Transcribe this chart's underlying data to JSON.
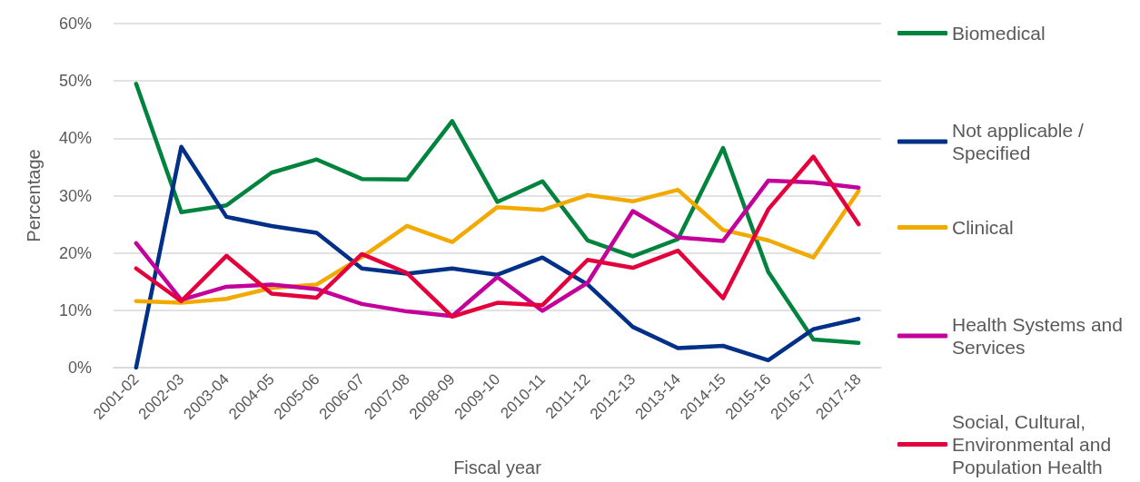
{
  "chart_data": {
    "type": "line",
    "xlabel": "Fiscal year",
    "ylabel": "Percentage",
    "categories": [
      "2001-02",
      "2002-03",
      "2003-04",
      "2004-05",
      "2005-06",
      "2006-07",
      "2007-08",
      "2008-09",
      "2009-10",
      "2010-11",
      "2011-12",
      "2012-13",
      "2013-14",
      "2014-15",
      "2015-16",
      "2016-17",
      "2017-18"
    ],
    "series": [
      {
        "name": "Biomedical",
        "color": "#00843d",
        "values": [
          49.5,
          27.1,
          28.3,
          34.0,
          36.3,
          32.9,
          32.8,
          43.0,
          28.9,
          32.5,
          22.2,
          19.4,
          22.4,
          38.3,
          16.7,
          4.9,
          4.3
        ]
      },
      {
        "name": "Not applicable / Specified",
        "color": "#003087",
        "values": [
          0,
          38.5,
          26.3,
          24.7,
          23.5,
          17.3,
          16.4,
          17.3,
          16.2,
          19.2,
          14.5,
          7.1,
          3.4,
          3.8,
          1.3,
          6.7,
          8.5
        ]
      },
      {
        "name": "Clinical",
        "color": "#f2a900",
        "values": [
          11.6,
          11.3,
          12.0,
          13.9,
          14.5,
          19.3,
          24.7,
          21.9,
          28.0,
          27.5,
          30.1,
          29.0,
          31.0,
          24.0,
          22.2,
          19.2,
          30.8
        ]
      },
      {
        "name": "Health Systems and Services",
        "color": "#c4009a",
        "values": [
          21.7,
          11.8,
          14.1,
          14.5,
          13.7,
          11.1,
          9.8,
          9.0,
          15.8,
          9.9,
          14.8,
          27.3,
          22.7,
          22.1,
          32.6,
          32.3,
          31.4
        ]
      },
      {
        "name": "Social, Cultural, Environmental and Population Health",
        "color": "#e4003b",
        "values": [
          17.3,
          11.6,
          19.5,
          12.9,
          12.2,
          19.8,
          16.5,
          8.9,
          11.3,
          10.9,
          18.8,
          17.4,
          20.4,
          12.1,
          27.6,
          36.8,
          25.0
        ]
      }
    ],
    "ylim": [
      0,
      60
    ],
    "yticks": [
      {
        "value": 0,
        "label": "0%"
      },
      {
        "value": 10,
        "label": "10%"
      },
      {
        "value": 20,
        "label": "20%"
      },
      {
        "value": 30,
        "label": "30%"
      },
      {
        "value": 40,
        "label": "40%"
      },
      {
        "value": 50,
        "label": "50%"
      },
      {
        "value": 60,
        "label": "60%"
      }
    ],
    "grid": "y",
    "legend": "right",
    "marker": "none",
    "line_style": "solid"
  }
}
